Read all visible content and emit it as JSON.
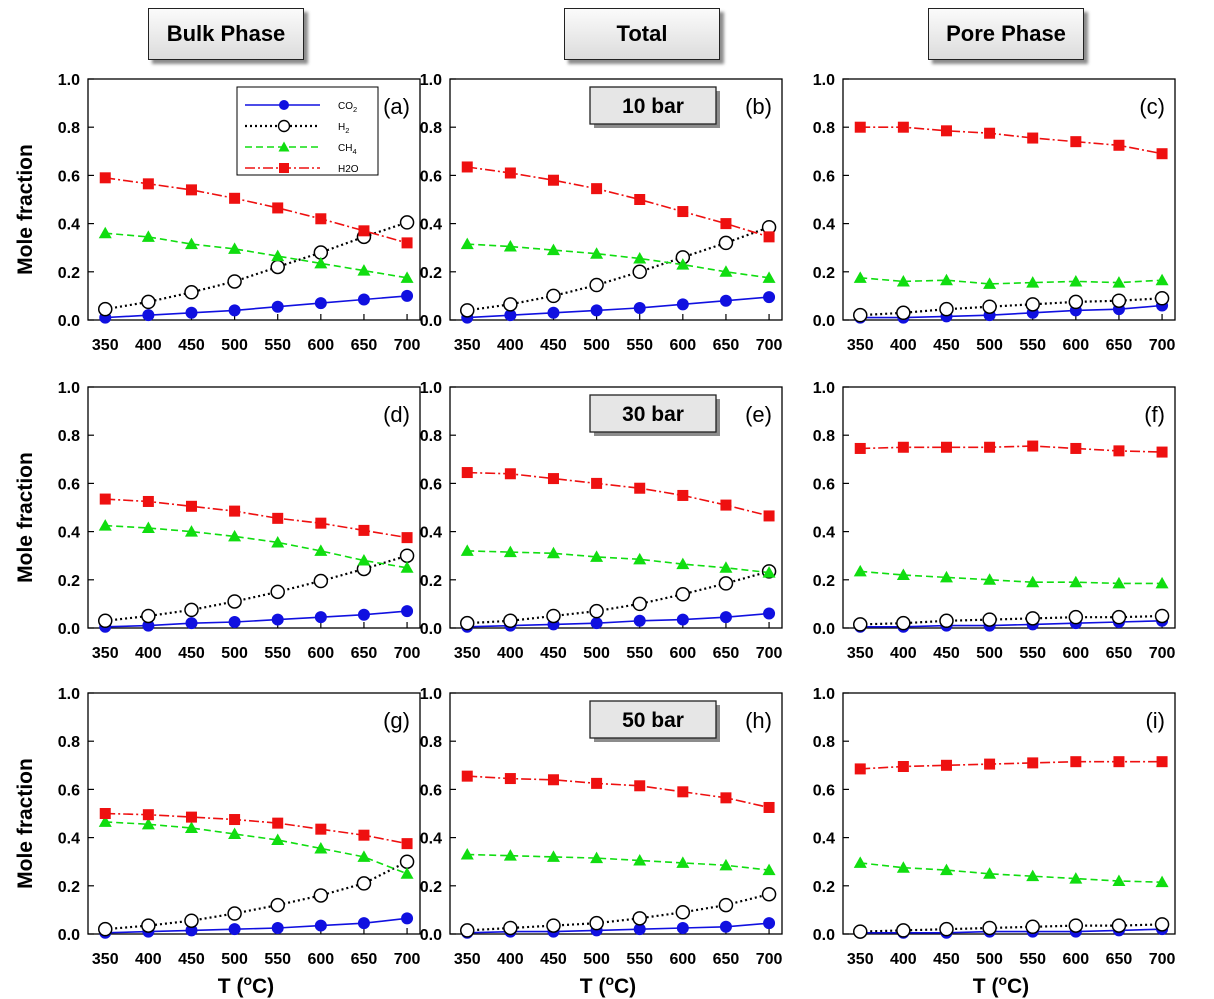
{
  "column_headers": [
    "Bulk Phase",
    "Total",
    "Pore Phase"
  ],
  "pressure_labels": [
    "10 bar",
    "30 bar",
    "50 bar"
  ],
  "ylabel": "Mole fraction",
  "xlabel": "T (°C)",
  "colors": {
    "CO2": "#1010e0",
    "H2": "#000000",
    "CH4": "#10dd10",
    "H2O": "#ee1010"
  },
  "legend": [
    {
      "key": "CO2",
      "text": "CO2"
    },
    {
      "key": "H2",
      "text": "H2"
    },
    {
      "key": "CH4",
      "text": "CH4"
    },
    {
      "key": "H2O",
      "text": "H2O"
    }
  ],
  "chart_data": [
    {
      "type": "line",
      "label": "(a)",
      "column": "Bulk Phase",
      "pressure": "10 bar",
      "x": [
        350,
        400,
        450,
        500,
        550,
        600,
        650,
        700
      ],
      "xlim": [
        330,
        715
      ],
      "ylim": [
        0,
        1
      ],
      "yticks": [
        "0.0",
        "0.2",
        "0.4",
        "0.6",
        "0.8",
        "1.0"
      ],
      "series": [
        {
          "name": "CO2",
          "values": [
            0.01,
            0.02,
            0.03,
            0.04,
            0.055,
            0.07,
            0.085,
            0.1
          ]
        },
        {
          "name": "H2",
          "values": [
            0.045,
            0.075,
            0.115,
            0.16,
            0.22,
            0.28,
            0.345,
            0.405
          ]
        },
        {
          "name": "CH4",
          "values": [
            0.36,
            0.345,
            0.315,
            0.295,
            0.265,
            0.235,
            0.205,
            0.175
          ]
        },
        {
          "name": "H2O",
          "values": [
            0.59,
            0.565,
            0.54,
            0.505,
            0.465,
            0.42,
            0.37,
            0.32
          ]
        }
      ]
    },
    {
      "type": "line",
      "label": "(b)",
      "column": "Total",
      "pressure": "10 bar",
      "x": [
        350,
        400,
        450,
        500,
        550,
        600,
        650,
        700
      ],
      "xlim": [
        330,
        715
      ],
      "ylim": [
        0,
        1
      ],
      "yticks": [
        "0.0",
        "0.2",
        "0.4",
        "0.6",
        "0.8",
        "1.0"
      ],
      "series": [
        {
          "name": "CO2",
          "values": [
            0.01,
            0.02,
            0.03,
            0.04,
            0.05,
            0.065,
            0.08,
            0.095
          ]
        },
        {
          "name": "H2",
          "values": [
            0.04,
            0.065,
            0.1,
            0.145,
            0.2,
            0.26,
            0.32,
            0.385
          ]
        },
        {
          "name": "CH4",
          "values": [
            0.315,
            0.305,
            0.29,
            0.275,
            0.255,
            0.23,
            0.2,
            0.175
          ]
        },
        {
          "name": "H2O",
          "values": [
            0.635,
            0.61,
            0.58,
            0.545,
            0.5,
            0.45,
            0.4,
            0.345
          ]
        }
      ]
    },
    {
      "type": "line",
      "label": "(c)",
      "column": "Pore Phase",
      "pressure": "10 bar",
      "x": [
        350,
        400,
        450,
        500,
        550,
        600,
        650,
        700
      ],
      "xlim": [
        330,
        715
      ],
      "ylim": [
        0,
        1
      ],
      "yticks": [
        "0.0",
        "0.2",
        "0.4",
        "0.6",
        "0.8",
        "1.0"
      ],
      "series": [
        {
          "name": "CO2",
          "values": [
            0.01,
            0.01,
            0.015,
            0.02,
            0.03,
            0.04,
            0.045,
            0.06
          ]
        },
        {
          "name": "H2",
          "values": [
            0.02,
            0.03,
            0.045,
            0.055,
            0.065,
            0.075,
            0.08,
            0.09
          ]
        },
        {
          "name": "CH4",
          "values": [
            0.175,
            0.16,
            0.165,
            0.15,
            0.155,
            0.16,
            0.155,
            0.165
          ]
        },
        {
          "name": "H2O",
          "values": [
            0.8,
            0.8,
            0.785,
            0.775,
            0.755,
            0.74,
            0.725,
            0.69
          ]
        }
      ]
    },
    {
      "type": "line",
      "label": "(d)",
      "column": "Bulk Phase",
      "pressure": "30 bar",
      "x": [
        350,
        400,
        450,
        500,
        550,
        600,
        650,
        700
      ],
      "xlim": [
        330,
        715
      ],
      "ylim": [
        0,
        1
      ],
      "yticks": [
        "0.0",
        "0.2",
        "0.4",
        "0.6",
        "0.8",
        "1.0"
      ],
      "series": [
        {
          "name": "CO2",
          "values": [
            0.005,
            0.01,
            0.02,
            0.025,
            0.035,
            0.045,
            0.055,
            0.07
          ]
        },
        {
          "name": "H2",
          "values": [
            0.03,
            0.05,
            0.075,
            0.11,
            0.15,
            0.195,
            0.245,
            0.3
          ]
        },
        {
          "name": "CH4",
          "values": [
            0.425,
            0.415,
            0.4,
            0.38,
            0.355,
            0.32,
            0.28,
            0.25
          ]
        },
        {
          "name": "H2O",
          "values": [
            0.535,
            0.525,
            0.505,
            0.485,
            0.455,
            0.435,
            0.405,
            0.375
          ]
        }
      ]
    },
    {
      "type": "line",
      "label": "(e)",
      "column": "Total",
      "pressure": "30 bar",
      "x": [
        350,
        400,
        450,
        500,
        550,
        600,
        650,
        700
      ],
      "xlim": [
        330,
        715
      ],
      "ylim": [
        0,
        1
      ],
      "yticks": [
        "0.0",
        "0.2",
        "0.4",
        "0.6",
        "0.8",
        "1.0"
      ],
      "series": [
        {
          "name": "CO2",
          "values": [
            0.005,
            0.01,
            0.015,
            0.02,
            0.03,
            0.035,
            0.045,
            0.06
          ]
        },
        {
          "name": "H2",
          "values": [
            0.02,
            0.03,
            0.05,
            0.07,
            0.1,
            0.14,
            0.185,
            0.235
          ]
        },
        {
          "name": "CH4",
          "values": [
            0.32,
            0.315,
            0.31,
            0.295,
            0.285,
            0.265,
            0.25,
            0.23
          ]
        },
        {
          "name": "H2O",
          "values": [
            0.645,
            0.64,
            0.62,
            0.6,
            0.58,
            0.55,
            0.51,
            0.465
          ]
        }
      ]
    },
    {
      "type": "line",
      "label": "(f)",
      "column": "Pore Phase",
      "pressure": "30 bar",
      "x": [
        350,
        400,
        450,
        500,
        550,
        600,
        650,
        700
      ],
      "xlim": [
        330,
        715
      ],
      "ylim": [
        0,
        1
      ],
      "yticks": [
        "0.0",
        "0.2",
        "0.4",
        "0.6",
        "0.8",
        "1.0"
      ],
      "series": [
        {
          "name": "CO2",
          "values": [
            0.005,
            0.005,
            0.01,
            0.01,
            0.015,
            0.02,
            0.025,
            0.03
          ]
        },
        {
          "name": "H2",
          "values": [
            0.015,
            0.02,
            0.03,
            0.035,
            0.04,
            0.045,
            0.045,
            0.05
          ]
        },
        {
          "name": "CH4",
          "values": [
            0.235,
            0.22,
            0.21,
            0.2,
            0.19,
            0.19,
            0.185,
            0.185
          ]
        },
        {
          "name": "H2O",
          "values": [
            0.745,
            0.75,
            0.75,
            0.75,
            0.755,
            0.745,
            0.735,
            0.73
          ]
        }
      ]
    },
    {
      "type": "line",
      "label": "(g)",
      "column": "Bulk Phase",
      "pressure": "50 bar",
      "x": [
        350,
        400,
        450,
        500,
        550,
        600,
        650,
        700
      ],
      "xlim": [
        330,
        715
      ],
      "ylim": [
        0,
        1
      ],
      "yticks": [
        "0.0",
        "0.2",
        "0.4",
        "0.6",
        "0.8",
        "1.0"
      ],
      "series": [
        {
          "name": "CO2",
          "values": [
            0.005,
            0.01,
            0.015,
            0.02,
            0.025,
            0.035,
            0.045,
            0.065
          ]
        },
        {
          "name": "H2",
          "values": [
            0.02,
            0.035,
            0.055,
            0.085,
            0.12,
            0.16,
            0.21,
            0.3
          ]
        },
        {
          "name": "CH4",
          "values": [
            0.465,
            0.455,
            0.44,
            0.415,
            0.39,
            0.355,
            0.32,
            0.25
          ]
        },
        {
          "name": "H2O",
          "values": [
            0.5,
            0.495,
            0.485,
            0.475,
            0.46,
            0.435,
            0.41,
            0.375
          ]
        }
      ]
    },
    {
      "type": "line",
      "label": "(h)",
      "column": "Total",
      "pressure": "50 bar",
      "x": [
        350,
        400,
        450,
        500,
        550,
        600,
        650,
        700
      ],
      "xlim": [
        330,
        715
      ],
      "ylim": [
        0,
        1
      ],
      "yticks": [
        "0.0",
        "0.2",
        "0.4",
        "0.6",
        "0.8",
        "1.0"
      ],
      "series": [
        {
          "name": "CO2",
          "values": [
            0.005,
            0.01,
            0.01,
            0.015,
            0.02,
            0.025,
            0.03,
            0.045
          ]
        },
        {
          "name": "H2",
          "values": [
            0.015,
            0.025,
            0.035,
            0.045,
            0.065,
            0.09,
            0.12,
            0.165
          ]
        },
        {
          "name": "CH4",
          "values": [
            0.33,
            0.325,
            0.32,
            0.315,
            0.305,
            0.295,
            0.285,
            0.265
          ]
        },
        {
          "name": "H2O",
          "values": [
            0.655,
            0.645,
            0.64,
            0.625,
            0.615,
            0.59,
            0.565,
            0.525
          ]
        }
      ]
    },
    {
      "type": "line",
      "label": "(i)",
      "column": "Pore Phase",
      "pressure": "50 bar",
      "x": [
        350,
        400,
        450,
        500,
        550,
        600,
        650,
        700
      ],
      "xlim": [
        330,
        715
      ],
      "ylim": [
        0,
        1
      ],
      "yticks": [
        "0.0",
        "0.2",
        "0.4",
        "0.6",
        "0.8",
        "1.0"
      ],
      "series": [
        {
          "name": "CO2",
          "values": [
            0.005,
            0.005,
            0.005,
            0.01,
            0.01,
            0.01,
            0.015,
            0.02
          ]
        },
        {
          "name": "H2",
          "values": [
            0.01,
            0.015,
            0.02,
            0.025,
            0.03,
            0.035,
            0.035,
            0.04
          ]
        },
        {
          "name": "CH4",
          "values": [
            0.295,
            0.275,
            0.265,
            0.25,
            0.24,
            0.23,
            0.22,
            0.215
          ]
        },
        {
          "name": "H2O",
          "values": [
            0.685,
            0.695,
            0.7,
            0.705,
            0.71,
            0.715,
            0.715,
            0.715
          ]
        }
      ]
    }
  ]
}
